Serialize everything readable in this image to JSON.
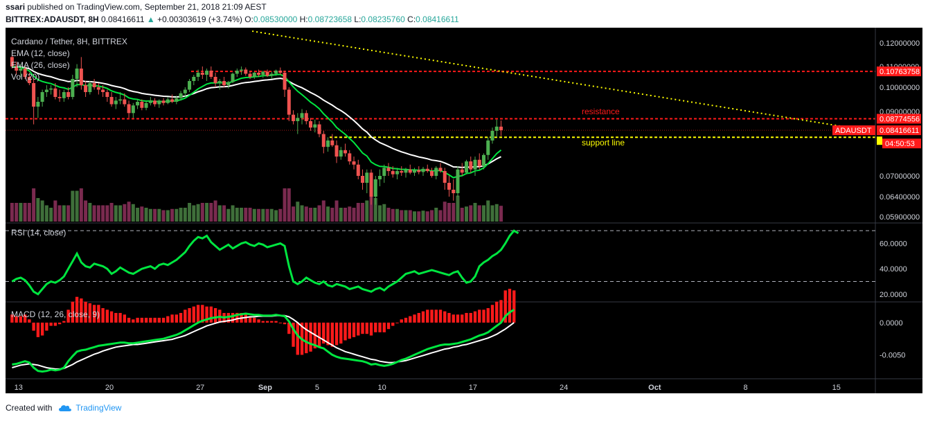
{
  "header": {
    "author": "ssari",
    "published_text": "published on TradingView.com, September 21, 2018 21:09 AEST",
    "symbol_line": "BITTREX:ADAUSDT, 8H",
    "last": "0.08416611",
    "change": "+0.00303619 (+3.74%)",
    "o_label": "O:",
    "o": "0.08530000",
    "h_label": "H:",
    "h": "0.08723658",
    "l_label": "L:",
    "l": "0.08235760",
    "c_label": "C:",
    "c": "0.08416611"
  },
  "legend": {
    "title": "Cardano / Tether, 8H, BITTREX",
    "ema12": "EMA (12, close)",
    "ema26": "EMA (26, close)",
    "vol": "Vol (20)",
    "rsi": "RSI (14, close)",
    "macd": "MACD (12, 26, close, 9)"
  },
  "annotations": {
    "resistance": "resistance",
    "support": "support line",
    "symbol_tag": "ADAUSDT",
    "countdown": "04:50:53"
  },
  "footer": {
    "created_with": "Created with",
    "brand": "TradingView"
  },
  "colors": {
    "background": "#000000",
    "up": "#4caf50",
    "down": "#ef5350",
    "ema12": "#00e640",
    "ema26": "#ffffff",
    "resistance": "#ff1a1a",
    "support": "#ffff00",
    "rsi": "#00e640",
    "macd": "#00e640",
    "signal": "#ffffff",
    "hist": "#ff1a1a"
  },
  "chart_data": {
    "type": "candlestick",
    "symbol": "ADAUSDT",
    "exchange": "BITTREX",
    "interval": "8H",
    "x_axis": {
      "ticks": [
        "13",
        "20",
        "27",
        "Sep",
        "5",
        "10",
        "17",
        "24",
        "Oct",
        "8",
        "15"
      ],
      "start": "2018-08-12",
      "end": "2018-10-18"
    },
    "price_axis": {
      "ticks": [
        "0.12000000",
        "0.11000000",
        "0.10000000",
        "0.09000000",
        "0.07000000",
        "0.06400000",
        "0.05900000"
      ],
      "badges": [
        {
          "label": "0.10763758",
          "color": "#ff1a1a",
          "value": 0.10763758
        },
        {
          "label": "0.08774556",
          "color": "#ff1a1a",
          "value": 0.08774556
        },
        {
          "label": "0.08416611",
          "color": "#ff1a1a",
          "value": 0.08416611
        }
      ]
    },
    "levels": {
      "resistance_top": 0.10763758,
      "resistance": 0.08774556,
      "support": 0.082
    },
    "trendline": [
      {
        "date": "2018-08-31",
        "price": 0.125
      },
      {
        "date": "2018-10-16",
        "price": 0.085
      }
    ],
    "ohlc_8h": [
      [
        0.114,
        0.115,
        0.109,
        0.11
      ],
      [
        0.11,
        0.112,
        0.106,
        0.108
      ],
      [
        0.108,
        0.111,
        0.105,
        0.109
      ],
      [
        0.109,
        0.11,
        0.104,
        0.105
      ],
      [
        0.105,
        0.107,
        0.101,
        0.102
      ],
      [
        0.102,
        0.104,
        0.086,
        0.092
      ],
      [
        0.092,
        0.096,
        0.088,
        0.094
      ],
      [
        0.094,
        0.099,
        0.092,
        0.098
      ],
      [
        0.098,
        0.101,
        0.096,
        0.099
      ],
      [
        0.099,
        0.101,
        0.097,
        0.0995
      ],
      [
        0.0995,
        0.102,
        0.095,
        0.096
      ],
      [
        0.096,
        0.099,
        0.094,
        0.0955
      ],
      [
        0.0955,
        0.099,
        0.094,
        0.098
      ],
      [
        0.098,
        0.1,
        0.095,
        0.096
      ],
      [
        0.096,
        0.106,
        0.095,
        0.104
      ],
      [
        0.104,
        0.111,
        0.1,
        0.109
      ],
      [
        0.109,
        0.114,
        0.099,
        0.101
      ],
      [
        0.101,
        0.103,
        0.096,
        0.098
      ],
      [
        0.098,
        0.103,
        0.097,
        0.102
      ],
      [
        0.102,
        0.104,
        0.099,
        0.1
      ],
      [
        0.1,
        0.102,
        0.097,
        0.099
      ],
      [
        0.099,
        0.101,
        0.096,
        0.098
      ],
      [
        0.098,
        0.099,
        0.094,
        0.096
      ],
      [
        0.096,
        0.098,
        0.092,
        0.093
      ],
      [
        0.093,
        0.096,
        0.091,
        0.0945
      ],
      [
        0.0945,
        0.098,
        0.093,
        0.095
      ],
      [
        0.095,
        0.0975,
        0.092,
        0.093
      ],
      [
        0.093,
        0.0945,
        0.088,
        0.0895
      ],
      [
        0.0895,
        0.0935,
        0.088,
        0.0925
      ],
      [
        0.0925,
        0.095,
        0.091,
        0.094
      ],
      [
        0.094,
        0.095,
        0.0905,
        0.0915
      ],
      [
        0.0915,
        0.0945,
        0.0905,
        0.0935
      ],
      [
        0.0935,
        0.096,
        0.0925,
        0.0945
      ],
      [
        0.0945,
        0.0955,
        0.092,
        0.093
      ],
      [
        0.093,
        0.095,
        0.0915,
        0.0945
      ],
      [
        0.0945,
        0.0955,
        0.0925,
        0.0935
      ],
      [
        0.0935,
        0.096,
        0.093,
        0.095
      ],
      [
        0.095,
        0.097,
        0.0935,
        0.094
      ],
      [
        0.094,
        0.0965,
        0.093,
        0.0955
      ],
      [
        0.0955,
        0.0985,
        0.0945,
        0.0975
      ],
      [
        0.0975,
        0.1,
        0.096,
        0.099
      ],
      [
        0.099,
        0.104,
        0.098,
        0.103
      ],
      [
        0.103,
        0.106,
        0.101,
        0.105
      ],
      [
        0.105,
        0.1085,
        0.103,
        0.107
      ],
      [
        0.107,
        0.11,
        0.104,
        0.106
      ],
      [
        0.106,
        0.109,
        0.103,
        0.108
      ],
      [
        0.108,
        0.11,
        0.104,
        0.105
      ],
      [
        0.105,
        0.107,
        0.1,
        0.102
      ],
      [
        0.102,
        0.104,
        0.099,
        0.103
      ],
      [
        0.103,
        0.105,
        0.1,
        0.101
      ],
      [
        0.101,
        0.103,
        0.0995,
        0.1025
      ],
      [
        0.1025,
        0.107,
        0.102,
        0.1065
      ],
      [
        0.1065,
        0.109,
        0.105,
        0.108
      ],
      [
        0.108,
        0.11,
        0.106,
        0.1085
      ],
      [
        0.1085,
        0.1095,
        0.1055,
        0.1065
      ],
      [
        0.1065,
        0.108,
        0.104,
        0.105
      ],
      [
        0.105,
        0.1075,
        0.104,
        0.107
      ],
      [
        0.107,
        0.1085,
        0.105,
        0.106
      ],
      [
        0.106,
        0.108,
        0.1045,
        0.1075
      ],
      [
        0.1075,
        0.1085,
        0.105,
        0.1055
      ],
      [
        0.1055,
        0.1075,
        0.104,
        0.1065
      ],
      [
        0.1065,
        0.1085,
        0.1055,
        0.108
      ],
      [
        0.108,
        0.1095,
        0.106,
        0.107
      ],
      [
        0.107,
        0.108,
        0.096,
        0.099
      ],
      [
        0.099,
        0.1,
        0.087,
        0.089
      ],
      [
        0.089,
        0.0905,
        0.086,
        0.087
      ],
      [
        0.087,
        0.0895,
        0.083,
        0.088
      ],
      [
        0.088,
        0.091,
        0.086,
        0.0895
      ],
      [
        0.0895,
        0.0905,
        0.086,
        0.087
      ],
      [
        0.087,
        0.088,
        0.084,
        0.085
      ],
      [
        0.085,
        0.0875,
        0.0835,
        0.086
      ],
      [
        0.086,
        0.087,
        0.082,
        0.083
      ],
      [
        0.083,
        0.084,
        0.077,
        0.079
      ],
      [
        0.079,
        0.082,
        0.0775,
        0.081
      ],
      [
        0.081,
        0.083,
        0.079,
        0.0795
      ],
      [
        0.0795,
        0.081,
        0.074,
        0.076
      ],
      [
        0.076,
        0.079,
        0.075,
        0.078
      ],
      [
        0.078,
        0.08,
        0.076,
        0.077
      ],
      [
        0.077,
        0.078,
        0.0735,
        0.0745
      ],
      [
        0.0745,
        0.076,
        0.072,
        0.0735
      ],
      [
        0.0735,
        0.075,
        0.069,
        0.07
      ],
      [
        0.07,
        0.072,
        0.066,
        0.068
      ],
      [
        0.068,
        0.072,
        0.065,
        0.071
      ],
      [
        0.071,
        0.072,
        0.062,
        0.064
      ],
      [
        0.064,
        0.07,
        0.062,
        0.069
      ],
      [
        0.069,
        0.072,
        0.067,
        0.07
      ],
      [
        0.07,
        0.0735,
        0.068,
        0.0725
      ],
      [
        0.0725,
        0.074,
        0.07,
        0.0715
      ],
      [
        0.0715,
        0.073,
        0.0695,
        0.0705
      ],
      [
        0.0705,
        0.0725,
        0.069,
        0.0715
      ],
      [
        0.0715,
        0.073,
        0.07,
        0.071
      ],
      [
        0.071,
        0.0725,
        0.0695,
        0.072
      ],
      [
        0.072,
        0.0735,
        0.0705,
        0.071
      ],
      [
        0.071,
        0.0725,
        0.07,
        0.0718
      ],
      [
        0.0718,
        0.073,
        0.0705,
        0.0712
      ],
      [
        0.0712,
        0.0728,
        0.07,
        0.0722
      ],
      [
        0.0722,
        0.0735,
        0.071,
        0.0715
      ],
      [
        0.0715,
        0.0725,
        0.0695,
        0.07
      ],
      [
        0.07,
        0.073,
        0.069,
        0.0725
      ],
      [
        0.0725,
        0.074,
        0.071,
        0.0715
      ],
      [
        0.0715,
        0.0725,
        0.066,
        0.068
      ],
      [
        0.068,
        0.07,
        0.064,
        0.066
      ],
      [
        0.066,
        0.069,
        0.063,
        0.065
      ],
      [
        0.065,
        0.073,
        0.064,
        0.072
      ],
      [
        0.072,
        0.074,
        0.07,
        0.071
      ],
      [
        0.071,
        0.075,
        0.0705,
        0.0745
      ],
      [
        0.0745,
        0.076,
        0.071,
        0.072
      ],
      [
        0.072,
        0.076,
        0.07,
        0.075
      ],
      [
        0.075,
        0.077,
        0.072,
        0.073
      ],
      [
        0.073,
        0.077,
        0.072,
        0.0765
      ],
      [
        0.0765,
        0.082,
        0.075,
        0.081
      ],
      [
        0.081,
        0.085,
        0.08,
        0.084
      ],
      [
        0.084,
        0.0875,
        0.082,
        0.0853
      ],
      [
        0.0853,
        0.0872,
        0.0824,
        0.0842
      ]
    ],
    "volume_series": "volume histogram (8H bars)",
    "rsi": {
      "ticks": [
        "60.0000",
        "40.0000",
        "20.0000"
      ],
      "levels": [
        70,
        30
      ],
      "range": [
        15,
        75
      ],
      "values": [
        30,
        32,
        33,
        31,
        27,
        22,
        20,
        24,
        28,
        30,
        29,
        31,
        34,
        40,
        46,
        52,
        45,
        42,
        41,
        44,
        43,
        42,
        40,
        36,
        38,
        41,
        39,
        37,
        36,
        38,
        40,
        41,
        42,
        40,
        43,
        44,
        43,
        45,
        47,
        50,
        53,
        58,
        62,
        65,
        64,
        66,
        61,
        58,
        55,
        57,
        59,
        56,
        58,
        60,
        61,
        59,
        58,
        60,
        59,
        57,
        58,
        59,
        60,
        58,
        42,
        30,
        28,
        30,
        33,
        31,
        29,
        28,
        30,
        27,
        26,
        28,
        27,
        26,
        24,
        25,
        26,
        24,
        23,
        22,
        24,
        25,
        23,
        26,
        28,
        30,
        33,
        36,
        37,
        38,
        36,
        37,
        38,
        39,
        38,
        37,
        36,
        35,
        37,
        38,
        33,
        29,
        30,
        34,
        42,
        45,
        47,
        50,
        52,
        55,
        60,
        66,
        70,
        68
      ]
    },
    "macd": {
      "ticks": [
        "0.0000",
        "-0.0050"
      ],
      "range": [
        -0.0085,
        0.003
      ],
      "note": "MACD line, signal line and histogram",
      "macd": [
        -0.0065,
        -0.0064,
        -0.0062,
        -0.006,
        -0.0062,
        -0.007,
        -0.0075,
        -0.0076,
        -0.0075,
        -0.0073,
        -0.0074,
        -0.0073,
        -0.007,
        -0.006,
        -0.0052,
        -0.0045,
        -0.0043,
        -0.0042,
        -0.004,
        -0.0038,
        -0.0036,
        -0.0035,
        -0.0034,
        -0.0033,
        -0.0032,
        -0.0031,
        -0.0031,
        -0.0032,
        -0.0032,
        -0.0031,
        -0.003,
        -0.0029,
        -0.0028,
        -0.0027,
        -0.0026,
        -0.0025,
        -0.0023,
        -0.0021,
        -0.0019,
        -0.0016,
        -0.0012,
        -0.0008,
        -0.0004,
        0.0,
        0.0003,
        0.0005,
        0.0007,
        0.0008,
        0.0009,
        0.0008,
        0.0009,
        0.001,
        0.0012,
        0.0013,
        0.0014,
        0.0013,
        0.0012,
        0.0012,
        0.0011,
        0.0011,
        0.0011,
        0.0012,
        0.0011,
        0.001,
        0.0002,
        -0.001,
        -0.002,
        -0.0026,
        -0.003,
        -0.0033,
        -0.0035,
        -0.0038,
        -0.004,
        -0.0045,
        -0.005,
        -0.0053,
        -0.0055,
        -0.0056,
        -0.0057,
        -0.0058,
        -0.0059,
        -0.006,
        -0.0062,
        -0.0065,
        -0.0064,
        -0.0066,
        -0.0067,
        -0.0066,
        -0.0064,
        -0.0061,
        -0.0058,
        -0.0056,
        -0.0053,
        -0.005,
        -0.0047,
        -0.0044,
        -0.0041,
        -0.0039,
        -0.0037,
        -0.0035,
        -0.0034,
        -0.0034,
        -0.0033,
        -0.0032,
        -0.003,
        -0.0028,
        -0.0026,
        -0.0023,
        -0.002,
        -0.0018,
        -0.0015,
        -0.001,
        -0.0005,
        0.0,
        0.001,
        0.0016,
        0.002
      ],
      "signal": [
        -0.007,
        -0.0068,
        -0.0066,
        -0.0065,
        -0.0064,
        -0.0065,
        -0.0066,
        -0.0068,
        -0.007,
        -0.0071,
        -0.0072,
        -0.0072,
        -0.0071,
        -0.0068,
        -0.0065,
        -0.0061,
        -0.0058,
        -0.0055,
        -0.0052,
        -0.0049,
        -0.0047,
        -0.0044,
        -0.0042,
        -0.004,
        -0.0038,
        -0.0037,
        -0.0036,
        -0.0035,
        -0.0034,
        -0.0034,
        -0.0033,
        -0.0032,
        -0.0031,
        -0.003,
        -0.0029,
        -0.0028,
        -0.0027,
        -0.0026,
        -0.0024,
        -0.0022,
        -0.002,
        -0.0017,
        -0.0014,
        -0.0011,
        -0.0008,
        -0.0005,
        -0.0003,
        -0.0001,
        0.0001,
        0.0002,
        0.0003,
        0.0004,
        0.0006,
        0.0007,
        0.0008,
        0.0009,
        0.0009,
        0.001,
        0.001,
        0.001,
        0.001,
        0.0011,
        0.0011,
        0.0011,
        0.0009,
        0.0005,
        0.0,
        -0.0006,
        -0.0011,
        -0.0015,
        -0.0019,
        -0.0023,
        -0.0027,
        -0.0031,
        -0.0035,
        -0.0039,
        -0.0042,
        -0.0045,
        -0.0047,
        -0.0049,
        -0.0051,
        -0.0053,
        -0.0055,
        -0.0057,
        -0.0058,
        -0.006,
        -0.0061,
        -0.0062,
        -0.0062,
        -0.0061,
        -0.006,
        -0.0059,
        -0.0057,
        -0.0055,
        -0.0053,
        -0.0051,
        -0.0049,
        -0.0047,
        -0.0045,
        -0.0043,
        -0.0041,
        -0.004,
        -0.0038,
        -0.0037,
        -0.0035,
        -0.0034,
        -0.0032,
        -0.003,
        -0.0028,
        -0.0026,
        -0.0024,
        -0.0021,
        -0.0018,
        -0.0014,
        -0.001,
        -0.0005,
        0.0
      ]
    }
  }
}
